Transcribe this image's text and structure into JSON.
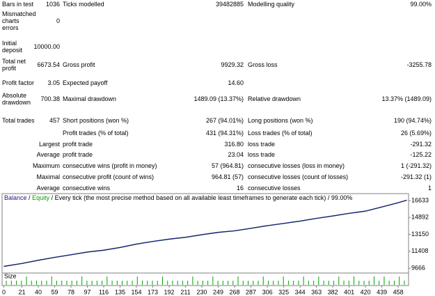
{
  "report": {
    "rows": [
      {
        "label": "Bars in test",
        "value": "1036",
        "label2": "Ticks modelled",
        "value2": "39482885",
        "label3": "Modelling quality",
        "value3": "99.00%"
      },
      {
        "label": "Mismatched charts errors",
        "value": "0"
      },
      {
        "label": "Initial deposit",
        "value": "10000.00"
      },
      {
        "label": "Total net profit",
        "value": "6673.54",
        "label2": "Gross profit",
        "value2": "9929.32",
        "label3": "Gross loss",
        "value3": "-3255.78"
      },
      {
        "label": "Profit factor",
        "value": "3.05",
        "label2": "Expected payoff",
        "value2": "14.60"
      },
      {
        "label": "Absolute drawdown",
        "value": "700.38",
        "label2": "Maximal drawdown",
        "value2": "1489.09 (13.37%)",
        "label3": "Relative drawdown",
        "value3": "13.37% (1489.09)"
      },
      {
        "label": "Total trades",
        "value": "457",
        "label2": "Short positions (won %)",
        "value2": "267 (94.01%)",
        "label3": "Long positions (won %)",
        "value3": "190 (94.74%)"
      },
      {
        "label2": "Profit trades (% of total)",
        "value2": "431 (94.31%)",
        "label3": "Loss trades (% of total)",
        "value3": "26 (5.69%)"
      },
      {
        "label": "Largest",
        "label2": "profit trade",
        "value2": "316.80",
        "label3": "loss trade",
        "value3": "-291.32"
      },
      {
        "label": "Average",
        "label2": "profit trade",
        "value2": "23.04",
        "label3": "loss trade",
        "value3": "-125.22"
      },
      {
        "label": "Maximum",
        "label2": "consecutive wins (profit in money)",
        "value2": "57 (964.81)",
        "label3": "consecutive losses (loss in money)",
        "value3": "1 (-291.32)"
      },
      {
        "label": "Maximal",
        "label2": "consecutive profit (count of wins)",
        "value2": "964.81 (57)",
        "label3": "consecutive losses (count of losses)",
        "value3": "-291.32 (1)"
      },
      {
        "label": "Average",
        "label2": "consecutive wins",
        "value2": "16",
        "label3": "consecutive losses",
        "value3": "1"
      }
    ]
  },
  "chart_data": {
    "type": "line",
    "separator": "/",
    "subtitle": "Every tick (the most precise method based on all available least timeframes to generate each tick)",
    "quality": "99.00%",
    "x": [
      0,
      21,
      40,
      59,
      78,
      97,
      116,
      135,
      154,
      173,
      192,
      211,
      230,
      249,
      268,
      287,
      306,
      325,
      344,
      363,
      382,
      401,
      420,
      439,
      458,
      468
    ],
    "series": [
      {
        "name": "Balance",
        "color": "#1a1a80",
        "values": [
          9850,
          10150,
          10480,
          10780,
          11050,
          11330,
          11520,
          11800,
          12150,
          12420,
          12660,
          12850,
          13120,
          13360,
          13520,
          13780,
          14050,
          14280,
          14520,
          14800,
          15050,
          15320,
          15550,
          15980,
          16420,
          16680
        ]
      },
      {
        "name": "Equity",
        "color": "#00a000",
        "values": [
          9840,
          10140,
          10470,
          10770,
          11040,
          11320,
          11510,
          11790,
          12140,
          12410,
          12650,
          12840,
          13110,
          13350,
          13510,
          13770,
          14040,
          14270,
          14510,
          14790,
          15040,
          15310,
          15540,
          15970,
          16410,
          16670
        ]
      }
    ],
    "xlim": [
      -2,
      470
    ],
    "xticks": [
      0,
      21,
      40,
      59,
      78,
      97,
      116,
      135,
      154,
      173,
      192,
      211,
      230,
      249,
      268,
      287,
      306,
      325,
      344,
      363,
      382,
      401,
      420,
      439,
      458
    ],
    "ylim": [
      9163,
      17351
    ],
    "yticks": [
      9666,
      11408,
      13150,
      14892,
      16633
    ],
    "size": {
      "label": "Size",
      "color": "#00a000",
      "ylim": [
        0,
        2
      ],
      "values": [
        1,
        1,
        1,
        1,
        2,
        1,
        1,
        1,
        1,
        2,
        1,
        1,
        1,
        1,
        1,
        2,
        1,
        1,
        1,
        1,
        2,
        1,
        1,
        1,
        1,
        1,
        2,
        1,
        1,
        1,
        1,
        2,
        1,
        1,
        1,
        1,
        1,
        2,
        1,
        1,
        1,
        2,
        1,
        1,
        1,
        1,
        2,
        1,
        1,
        1,
        1,
        2,
        1,
        1,
        1,
        2,
        1,
        1,
        1,
        2,
        1,
        1,
        2,
        1,
        1,
        1,
        2,
        1,
        1,
        2,
        1,
        1,
        1,
        2,
        1,
        2,
        1,
        1,
        2,
        1
      ]
    }
  }
}
